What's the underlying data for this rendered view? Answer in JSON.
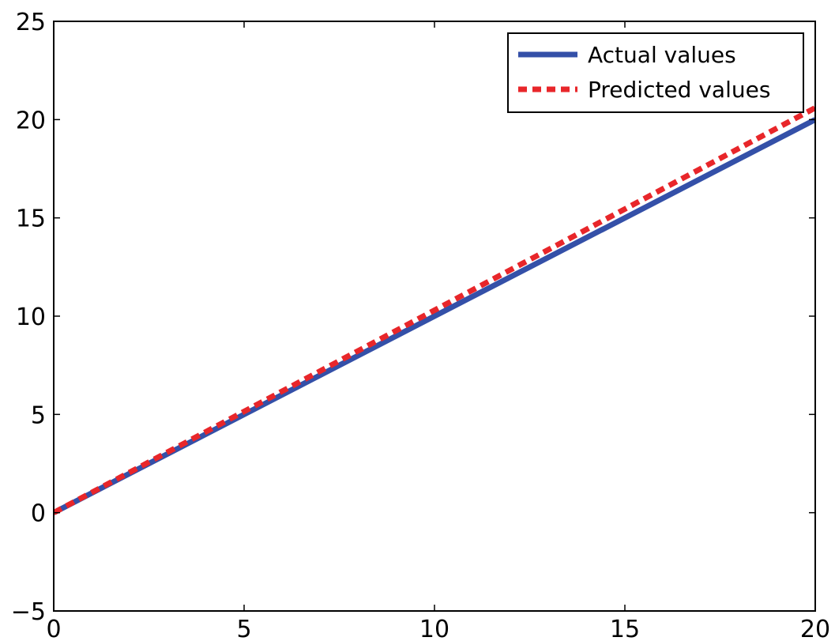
{
  "chart_data": {
    "type": "line",
    "title": "",
    "xlabel": "",
    "ylabel": "",
    "xlim": [
      0,
      20
    ],
    "ylim": [
      -5,
      25
    ],
    "x_ticks": [
      "0",
      "5",
      "10",
      "15",
      "20"
    ],
    "y_ticks": [
      "−5",
      "0",
      "5",
      "10",
      "15",
      "20",
      "25"
    ],
    "grid": false,
    "legend_position": "top-right",
    "series": [
      {
        "name": "Actual values",
        "style": "solid",
        "color": "#3450a8",
        "x": [
          0,
          20
        ],
        "y": [
          0,
          20
        ]
      },
      {
        "name": "Predicted values",
        "style": "dashed",
        "color": "#e8262a",
        "x": [
          0,
          20
        ],
        "y": [
          0,
          20.6
        ]
      }
    ]
  }
}
